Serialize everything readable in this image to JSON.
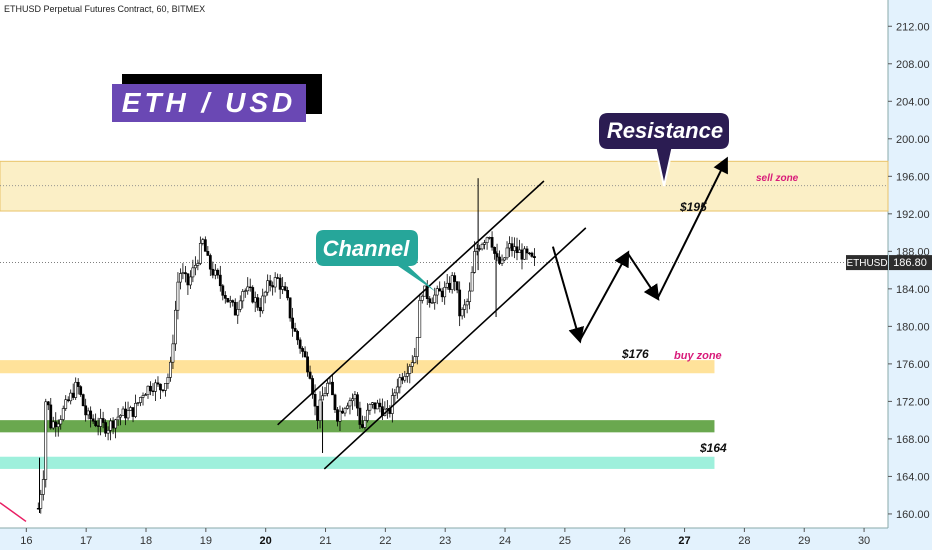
{
  "chart_data": {
    "type": "candlestick",
    "title": "ETHUSD Perpetual Futures Contract, 60, BITMEX",
    "symbol": "ETHUSD",
    "last_price": "186.80",
    "ylim": [
      158.5,
      214.8
    ],
    "y_ticks": [
      "212.00",
      "208.00",
      "204.00",
      "200.00",
      "196.00",
      "192.00",
      "188.00",
      "184.00",
      "180.00",
      "176.00",
      "172.00",
      "168.00",
      "164.00",
      "160.00"
    ],
    "y_tick_values": [
      212,
      208,
      204,
      200,
      196,
      192,
      188,
      184,
      180,
      176,
      172,
      168,
      164,
      160
    ],
    "x_ticks": [
      {
        "label": "16",
        "pos": 16,
        "bold": false
      },
      {
        "label": "17",
        "pos": 17,
        "bold": false
      },
      {
        "label": "18",
        "pos": 18,
        "bold": false
      },
      {
        "label": "19",
        "pos": 19,
        "bold": false
      },
      {
        "label": "20",
        "pos": 20,
        "bold": true
      },
      {
        "label": "21",
        "pos": 21,
        "bold": false
      },
      {
        "label": "22",
        "pos": 22,
        "bold": false
      },
      {
        "label": "23",
        "pos": 23,
        "bold": false
      },
      {
        "label": "24",
        "pos": 24,
        "bold": false
      },
      {
        "label": "25",
        "pos": 25,
        "bold": false
      },
      {
        "label": "26",
        "pos": 26,
        "bold": false
      },
      {
        "label": "27",
        "pos": 27,
        "bold": true
      },
      {
        "label": "28",
        "pos": 28,
        "bold": false
      },
      {
        "label": "29",
        "pos": 29,
        "bold": false
      },
      {
        "label": "30",
        "pos": 30,
        "bold": false
      }
    ],
    "xlim": [
      15.56,
      30.4
    ],
    "price_path": [
      [
        16.2,
        160.6
      ],
      [
        16.3,
        165.0
      ],
      [
        16.33,
        173.5
      ],
      [
        16.4,
        169.5
      ],
      [
        16.55,
        170.2
      ],
      [
        16.7,
        172.0
      ],
      [
        16.85,
        173.8
      ],
      [
        17.0,
        170.5
      ],
      [
        17.15,
        169.8
      ],
      [
        17.35,
        169.2
      ],
      [
        17.55,
        170.5
      ],
      [
        17.8,
        171.0
      ],
      [
        17.95,
        173.0
      ],
      [
        18.1,
        173.8
      ],
      [
        18.25,
        173.4
      ],
      [
        18.4,
        175.0
      ],
      [
        18.55,
        186.0
      ],
      [
        18.7,
        184.5
      ],
      [
        18.85,
        187.0
      ],
      [
        18.95,
        189.0
      ],
      [
        19.05,
        186.5
      ],
      [
        19.2,
        185.0
      ],
      [
        19.35,
        183.0
      ],
      [
        19.5,
        181.5
      ],
      [
        19.6,
        184.0
      ],
      [
        19.75,
        183.5
      ],
      [
        19.9,
        182.0
      ],
      [
        20.05,
        184.5
      ],
      [
        20.2,
        185.0
      ],
      [
        20.35,
        183.0
      ],
      [
        20.45,
        180.0
      ],
      [
        20.6,
        177.5
      ],
      [
        20.75,
        175.0
      ],
      [
        20.85,
        170.0
      ],
      [
        20.95,
        172.5
      ],
      [
        21.05,
        174.0
      ],
      [
        21.2,
        170.5
      ],
      [
        21.35,
        172.0
      ],
      [
        21.5,
        172.5
      ],
      [
        21.6,
        169.0
      ],
      [
        21.75,
        171.5
      ],
      [
        21.9,
        171.5
      ],
      [
        22.05,
        170.5
      ],
      [
        22.2,
        174.0
      ],
      [
        22.35,
        175.5
      ],
      [
        22.5,
        177.0
      ],
      [
        22.6,
        184.0
      ],
      [
        22.75,
        183.0
      ],
      [
        22.9,
        183.5
      ],
      [
        23.05,
        184.0
      ],
      [
        23.15,
        185.5
      ],
      [
        23.25,
        181.0
      ],
      [
        23.4,
        183.0
      ],
      [
        23.5,
        188.0
      ],
      [
        23.6,
        189.0
      ],
      [
        23.75,
        190.0
      ],
      [
        23.85,
        187.0
      ],
      [
        23.95,
        186.5
      ],
      [
        24.05,
        188.5
      ],
      [
        24.2,
        188.0
      ],
      [
        24.35,
        187.5
      ],
      [
        24.5,
        186.8
      ]
    ],
    "channel_upper": [
      [
        20.2,
        169.5
      ],
      [
        24.65,
        195.5
      ]
    ],
    "channel_lower": [
      [
        20.98,
        164.8
      ],
      [
        25.35,
        190.5
      ]
    ],
    "projection_path": [
      [
        24.8,
        188.5
      ],
      [
        25.25,
        178.5
      ],
      [
        26.05,
        187.8
      ],
      [
        26.55,
        183.0
      ],
      [
        27.7,
        197.8
      ]
    ],
    "zones": [
      {
        "name": "sell-zone",
        "y0": 192.3,
        "y1": 197.6,
        "x1": null,
        "color": "#fbefc6",
        "border": "#e8c36a"
      },
      {
        "name": "buy-zone",
        "y0": 175.0,
        "y1": 176.4,
        "x1": 27.5,
        "color": "#ffe29a",
        "border": null
      },
      {
        "name": "support-zone",
        "y0": 168.7,
        "y1": 170.0,
        "x1": 27.5,
        "color": "#6aa84f",
        "border": null
      },
      {
        "name": "lower-zone",
        "y0": 164.8,
        "y1": 166.1,
        "x1": 27.5,
        "color": "#9ef0dc",
        "border": null
      }
    ],
    "dotted_line_y": 195.0,
    "grid": false
  },
  "annotations": {
    "eth_label": "ETH / USD",
    "resistance": "Resistance",
    "channel": "Channel",
    "sell_zone": "sell zone",
    "buy_zone": "buy zone",
    "price_195": "$195",
    "price_176": "$176",
    "price_164": "$164"
  },
  "colors": {
    "eth_box_bg": "#6a48b4",
    "resistance_bg": "#2b1c52",
    "channel_bg": "#26a69a",
    "zone_text": "#d81b7a",
    "axis_bg": "#e3f2fd",
    "chart_bg": "#ffffff"
  }
}
